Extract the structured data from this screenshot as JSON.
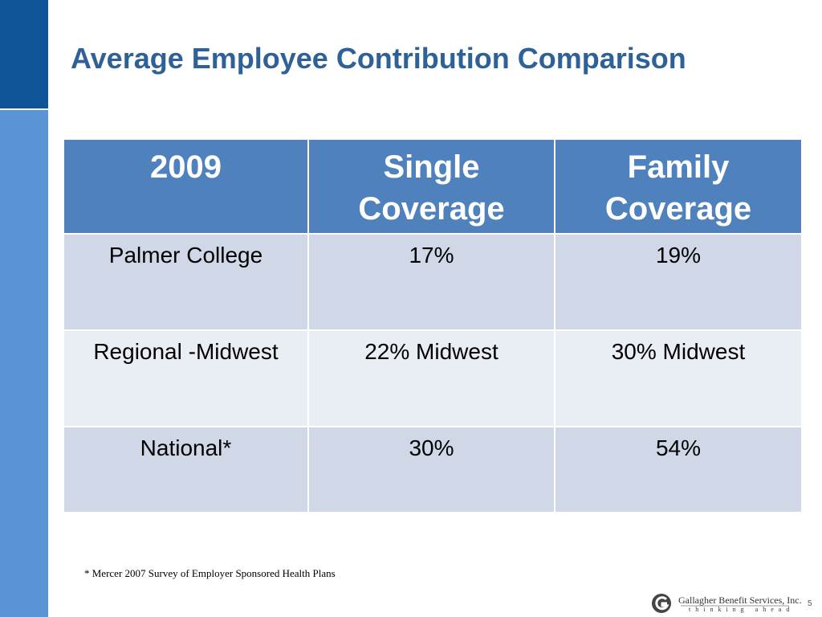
{
  "header": {
    "title": "Average Employee Contribution Comparison"
  },
  "table": {
    "columns": [
      "2009",
      "Single Coverage",
      "Family Coverage"
    ],
    "rows": [
      [
        "Palmer College",
        "17%",
        "19%"
      ],
      [
        "Regional -Midwest",
        "22% Midwest",
        "30% Midwest"
      ],
      [
        "National*",
        "30%",
        "54%"
      ]
    ]
  },
  "footnote": "* Mercer 2007  Survey of Employer Sponsored Health Plans",
  "footer": {
    "company": "Gallagher Benefit Services, Inc.",
    "tagline": "thinking ahead",
    "page": "5"
  }
}
